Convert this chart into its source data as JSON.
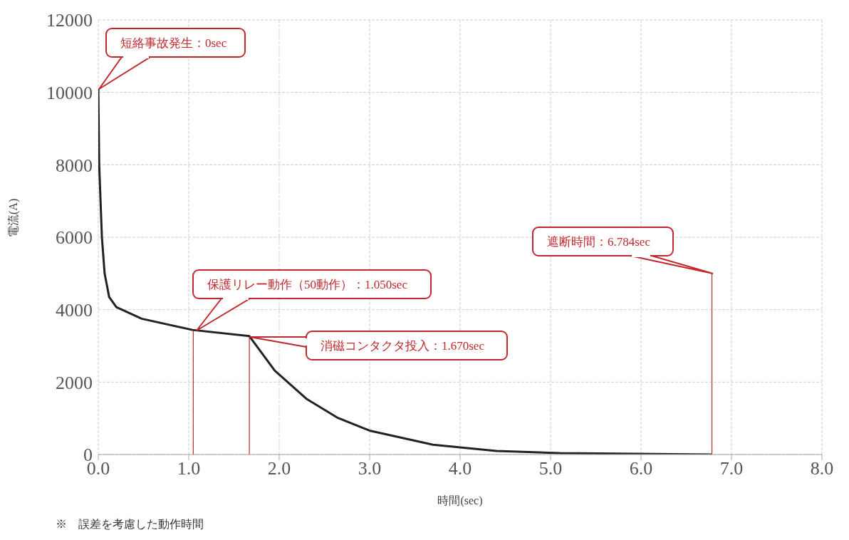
{
  "chart_data": {
    "type": "line",
    "xlabel": "時間(sec)",
    "ylabel": "電流(A)",
    "xlim": [
      0,
      8
    ],
    "xticks": [
      {
        "value": 0,
        "label": "0.0"
      },
      {
        "value": 1,
        "label": "1.0"
      },
      {
        "value": 2,
        "label": "2.0"
      },
      {
        "value": 3,
        "label": "3.0"
      },
      {
        "value": 4,
        "label": "4.0"
      },
      {
        "value": 5,
        "label": "5.0"
      },
      {
        "value": 6,
        "label": "6.0"
      },
      {
        "value": 7,
        "label": "7.0"
      },
      {
        "value": 8,
        "label": "8.0"
      }
    ],
    "ylim": [
      0,
      12000
    ],
    "yticks": [
      0,
      2000,
      4000,
      6000,
      8000,
      10000,
      12000
    ],
    "grid": true,
    "marker": "none",
    "line_style": "solid",
    "legend": false,
    "series": [
      {
        "color": "#1f2421",
        "x": [
          0,
          0.01,
          0.04,
          0.07,
          0.12,
          0.2,
          0.48,
          1.04,
          1.67,
          1.95,
          2.3,
          2.65,
          3.0,
          3.7,
          4.4,
          5.1,
          6.784
        ],
        "values": [
          10100,
          8000,
          6000,
          5000,
          4350,
          4070,
          3750,
          3440,
          3270,
          2320,
          1540,
          1010,
          660,
          270,
          100,
          40,
          0
        ]
      }
    ],
    "ref_lines": [
      {
        "axis": "x",
        "value": 1.05,
        "color": "#c0282d"
      },
      {
        "axis": "x",
        "value": 1.67,
        "color": "#c0282d"
      },
      {
        "axis": "x",
        "value": 6.784,
        "color": "#c0282d"
      }
    ],
    "annotations": [
      "短絡事故発生：0sec",
      "保護リレー動作（50動作）：1.050sec",
      "消磁コンタクタ投入：1.670sec",
      "遮断時間：6.784sec",
      "※　誤差を考慮した動作時間"
    ]
  }
}
